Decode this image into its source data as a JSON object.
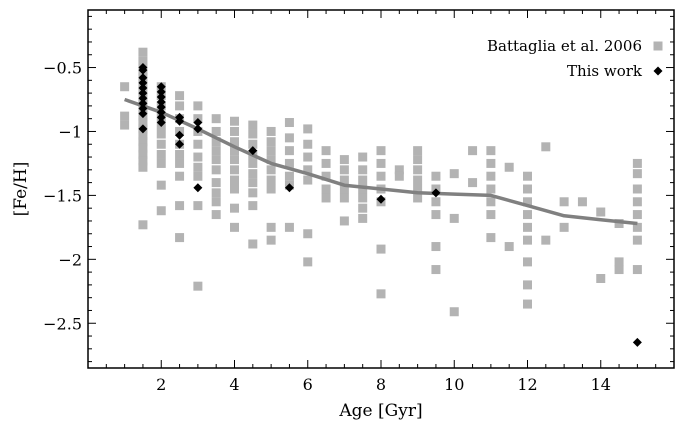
{
  "chart_data": {
    "type": "scatter",
    "title": "",
    "xlabel": "Age [Gyr]",
    "ylabel": "[Fe/H]",
    "xlim": [
      0,
      16
    ],
    "ylim": [
      -2.85,
      -0.05
    ],
    "x_ticks": [
      2,
      4,
      6,
      8,
      10,
      12,
      14
    ],
    "x_tick_labels": [
      "2",
      "4",
      "6",
      "8",
      "10",
      "12",
      "14"
    ],
    "x_minor_step": 0.5,
    "y_ticks": [
      -2.5,
      -2,
      -1.5,
      -1,
      -0.5
    ],
    "y_tick_labels": [
      "−2.5",
      "−2",
      "−1.5",
      "−1",
      "−0.5"
    ],
    "y_minor_step": 0.1,
    "grid": false,
    "legend": {
      "placement": "top-right"
    },
    "colors": {
      "battaglia": "#b3b3b3",
      "this_work": "#000000",
      "trend": "#808080"
    },
    "series": [
      {
        "name": "Battaglia et al. 2006",
        "marker": "square",
        "points": [
          [
            1.0,
            -0.65
          ],
          [
            1.0,
            -0.88
          ],
          [
            1.0,
            -0.95
          ],
          [
            1.5,
            -0.38
          ],
          [
            1.5,
            -0.45
          ],
          [
            1.5,
            -0.52
          ],
          [
            1.5,
            -0.58
          ],
          [
            1.5,
            -0.63
          ],
          [
            1.5,
            -0.68
          ],
          [
            1.5,
            -0.73
          ],
          [
            1.5,
            -0.78
          ],
          [
            1.5,
            -0.83
          ],
          [
            1.5,
            -0.88
          ],
          [
            1.5,
            -0.93
          ],
          [
            1.5,
            -0.98
          ],
          [
            1.5,
            -1.03
          ],
          [
            1.5,
            -1.08
          ],
          [
            1.5,
            -1.13
          ],
          [
            1.5,
            -1.18
          ],
          [
            1.5,
            -1.23
          ],
          [
            1.5,
            -1.28
          ],
          [
            1.5,
            -1.73
          ],
          [
            2.0,
            -0.65
          ],
          [
            2.0,
            -0.72
          ],
          [
            2.0,
            -0.8
          ],
          [
            2.0,
            -0.88
          ],
          [
            2.0,
            -0.95
          ],
          [
            2.0,
            -1.02
          ],
          [
            2.0,
            -1.1
          ],
          [
            2.0,
            -1.18
          ],
          [
            2.0,
            -1.25
          ],
          [
            2.0,
            -1.42
          ],
          [
            2.0,
            -1.62
          ],
          [
            2.5,
            -0.72
          ],
          [
            2.5,
            -0.8
          ],
          [
            2.5,
            -0.9
          ],
          [
            2.5,
            -1.0
          ],
          [
            2.5,
            -1.1
          ],
          [
            2.5,
            -1.18
          ],
          [
            2.5,
            -1.25
          ],
          [
            2.5,
            -1.35
          ],
          [
            2.5,
            -1.58
          ],
          [
            2.5,
            -1.83
          ],
          [
            3.0,
            -0.8
          ],
          [
            3.0,
            -0.9
          ],
          [
            3.0,
            -1.0
          ],
          [
            3.0,
            -1.1
          ],
          [
            3.0,
            -1.2
          ],
          [
            3.0,
            -1.28
          ],
          [
            3.0,
            -1.35
          ],
          [
            3.0,
            -1.58
          ],
          [
            3.0,
            -2.21
          ],
          [
            3.5,
            -0.9
          ],
          [
            3.5,
            -1.0
          ],
          [
            3.5,
            -1.08
          ],
          [
            3.5,
            -1.15
          ],
          [
            3.5,
            -1.22
          ],
          [
            3.5,
            -1.3
          ],
          [
            3.5,
            -1.4
          ],
          [
            3.5,
            -1.48
          ],
          [
            3.5,
            -1.55
          ],
          [
            3.5,
            -1.65
          ],
          [
            4.0,
            -0.92
          ],
          [
            4.0,
            -1.0
          ],
          [
            4.0,
            -1.08
          ],
          [
            4.0,
            -1.15
          ],
          [
            4.0,
            -1.22
          ],
          [
            4.0,
            -1.3
          ],
          [
            4.0,
            -1.38
          ],
          [
            4.0,
            -1.45
          ],
          [
            4.0,
            -1.6
          ],
          [
            4.0,
            -1.75
          ],
          [
            4.5,
            -0.95
          ],
          [
            4.5,
            -1.02
          ],
          [
            4.5,
            -1.1
          ],
          [
            4.5,
            -1.18
          ],
          [
            4.5,
            -1.25
          ],
          [
            4.5,
            -1.33
          ],
          [
            4.5,
            -1.4
          ],
          [
            4.5,
            -1.48
          ],
          [
            4.5,
            -1.58
          ],
          [
            4.5,
            -1.88
          ],
          [
            5.0,
            -1.0
          ],
          [
            5.0,
            -1.08
          ],
          [
            5.0,
            -1.15
          ],
          [
            5.0,
            -1.22
          ],
          [
            5.0,
            -1.3
          ],
          [
            5.0,
            -1.38
          ],
          [
            5.0,
            -1.45
          ],
          [
            5.0,
            -1.75
          ],
          [
            5.0,
            -1.85
          ],
          [
            5.5,
            -0.93
          ],
          [
            5.5,
            -1.05
          ],
          [
            5.5,
            -1.15
          ],
          [
            5.5,
            -1.25
          ],
          [
            5.5,
            -1.35
          ],
          [
            5.5,
            -1.42
          ],
          [
            5.5,
            -1.75
          ],
          [
            6.0,
            -0.98
          ],
          [
            6.0,
            -1.1
          ],
          [
            6.0,
            -1.2
          ],
          [
            6.0,
            -1.3
          ],
          [
            6.0,
            -1.38
          ],
          [
            6.0,
            -1.8
          ],
          [
            6.0,
            -2.02
          ],
          [
            6.5,
            -1.15
          ],
          [
            6.5,
            -1.25
          ],
          [
            6.5,
            -1.35
          ],
          [
            6.5,
            -1.45
          ],
          [
            6.5,
            -1.52
          ],
          [
            7.0,
            -1.22
          ],
          [
            7.0,
            -1.3
          ],
          [
            7.0,
            -1.38
          ],
          [
            7.0,
            -1.45
          ],
          [
            7.0,
            -1.52
          ],
          [
            7.0,
            -1.7
          ],
          [
            7.5,
            -1.2
          ],
          [
            7.5,
            -1.3
          ],
          [
            7.5,
            -1.38
          ],
          [
            7.5,
            -1.45
          ],
          [
            7.5,
            -1.52
          ],
          [
            7.5,
            -1.6
          ],
          [
            7.5,
            -1.68
          ],
          [
            8.0,
            -1.15
          ],
          [
            8.0,
            -1.25
          ],
          [
            8.0,
            -1.35
          ],
          [
            8.0,
            -1.45
          ],
          [
            8.0,
            -1.55
          ],
          [
            8.0,
            -1.92
          ],
          [
            8.0,
            -2.27
          ],
          [
            8.5,
            -1.3
          ],
          [
            8.5,
            -1.35
          ],
          [
            9.0,
            -1.15
          ],
          [
            9.0,
            -1.22
          ],
          [
            9.0,
            -1.3
          ],
          [
            9.0,
            -1.38
          ],
          [
            9.0,
            -1.45
          ],
          [
            9.0,
            -1.52
          ],
          [
            9.5,
            -1.35
          ],
          [
            9.5,
            -1.45
          ],
          [
            9.5,
            -1.55
          ],
          [
            9.5,
            -1.65
          ],
          [
            9.5,
            -1.9
          ],
          [
            9.5,
            -2.08
          ],
          [
            10.0,
            -1.33
          ],
          [
            10.0,
            -1.68
          ],
          [
            10.0,
            -2.41
          ],
          [
            10.5,
            -1.15
          ],
          [
            10.5,
            -1.4
          ],
          [
            11.0,
            -1.15
          ],
          [
            11.0,
            -1.25
          ],
          [
            11.0,
            -1.35
          ],
          [
            11.0,
            -1.45
          ],
          [
            11.0,
            -1.55
          ],
          [
            11.0,
            -1.65
          ],
          [
            11.0,
            -1.83
          ],
          [
            11.5,
            -1.28
          ],
          [
            11.5,
            -1.9
          ],
          [
            12.0,
            -1.35
          ],
          [
            12.0,
            -1.45
          ],
          [
            12.0,
            -1.55
          ],
          [
            12.0,
            -1.65
          ],
          [
            12.0,
            -1.75
          ],
          [
            12.0,
            -1.85
          ],
          [
            12.0,
            -2.02
          ],
          [
            12.0,
            -2.2
          ],
          [
            12.0,
            -2.35
          ],
          [
            12.5,
            -1.12
          ],
          [
            12.5,
            -1.85
          ],
          [
            13.0,
            -1.55
          ],
          [
            13.0,
            -1.75
          ],
          [
            13.5,
            -1.55
          ],
          [
            14.0,
            -1.63
          ],
          [
            14.0,
            -2.15
          ],
          [
            14.5,
            -1.72
          ],
          [
            14.5,
            -2.02
          ],
          [
            14.5,
            -2.08
          ],
          [
            15.0,
            -1.25
          ],
          [
            15.0,
            -1.33
          ],
          [
            15.0,
            -1.45
          ],
          [
            15.0,
            -1.55
          ],
          [
            15.0,
            -1.65
          ],
          [
            15.0,
            -1.75
          ],
          [
            15.0,
            -1.85
          ],
          [
            15.0,
            -2.08
          ]
        ]
      },
      {
        "name": "This work",
        "marker": "diamond",
        "points": [
          [
            1.5,
            -0.5
          ],
          [
            1.5,
            -0.52
          ],
          [
            1.5,
            -0.58
          ],
          [
            1.5,
            -0.62
          ],
          [
            1.5,
            -0.66
          ],
          [
            1.5,
            -0.7
          ],
          [
            1.5,
            -0.74
          ],
          [
            1.5,
            -0.78
          ],
          [
            1.5,
            -0.82
          ],
          [
            1.5,
            -0.86
          ],
          [
            1.5,
            -0.98
          ],
          [
            2.0,
            -0.65
          ],
          [
            2.0,
            -0.69
          ],
          [
            2.0,
            -0.73
          ],
          [
            2.0,
            -0.77
          ],
          [
            2.0,
            -0.81
          ],
          [
            2.0,
            -0.85
          ],
          [
            2.0,
            -0.89
          ],
          [
            2.0,
            -0.93
          ],
          [
            2.5,
            -0.89
          ],
          [
            2.5,
            -0.92
          ],
          [
            2.5,
            -1.03
          ],
          [
            2.5,
            -1.1
          ],
          [
            3.0,
            -0.93
          ],
          [
            3.0,
            -0.98
          ],
          [
            3.0,
            -1.44
          ],
          [
            4.5,
            -1.15
          ],
          [
            5.5,
            -1.44
          ],
          [
            8.0,
            -1.53
          ],
          [
            9.5,
            -1.48
          ],
          [
            15.0,
            -2.65
          ]
        ]
      },
      {
        "name": "",
        "marker": "line",
        "points": [
          [
            1.0,
            -0.75
          ],
          [
            2.0,
            -0.85
          ],
          [
            3.0,
            -0.98
          ],
          [
            4.0,
            -1.12
          ],
          [
            5.0,
            -1.25
          ],
          [
            6.0,
            -1.33
          ],
          [
            7.0,
            -1.42
          ],
          [
            8.0,
            -1.45
          ],
          [
            9.0,
            -1.48
          ],
          [
            10.0,
            -1.49
          ],
          [
            11.0,
            -1.5
          ],
          [
            12.0,
            -1.58
          ],
          [
            13.0,
            -1.66
          ],
          [
            14.0,
            -1.69
          ],
          [
            15.0,
            -1.72
          ]
        ]
      }
    ]
  }
}
